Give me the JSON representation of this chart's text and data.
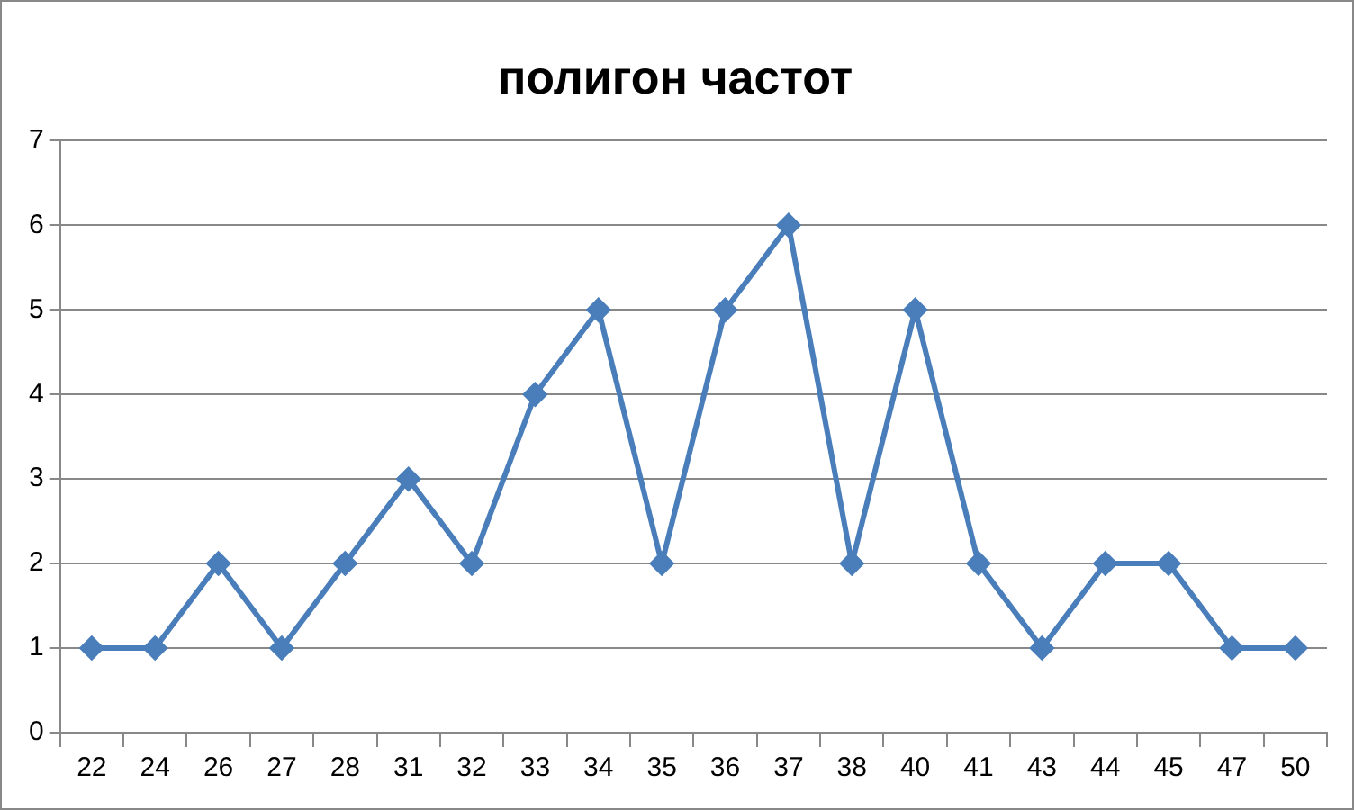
{
  "chart_data": {
    "type": "line",
    "title": "полигон частот",
    "categories": [
      "22",
      "24",
      "26",
      "27",
      "28",
      "31",
      "32",
      "33",
      "34",
      "35",
      "36",
      "37",
      "38",
      "40",
      "41",
      "43",
      "44",
      "45",
      "47",
      "50"
    ],
    "series": [
      {
        "color": "#4a7ebb",
        "values": [
          1,
          1,
          2,
          1,
          2,
          3,
          2,
          4,
          5,
          2,
          5,
          6,
          2,
          5,
          2,
          1,
          2,
          2,
          1,
          1
        ]
      }
    ],
    "ylim": [
      0,
      7
    ],
    "yticks": [
      0,
      1,
      2,
      3,
      4,
      5,
      6,
      7
    ],
    "grid": "y",
    "legend": false,
    "marker": "diamond",
    "line_style": "solid"
  }
}
